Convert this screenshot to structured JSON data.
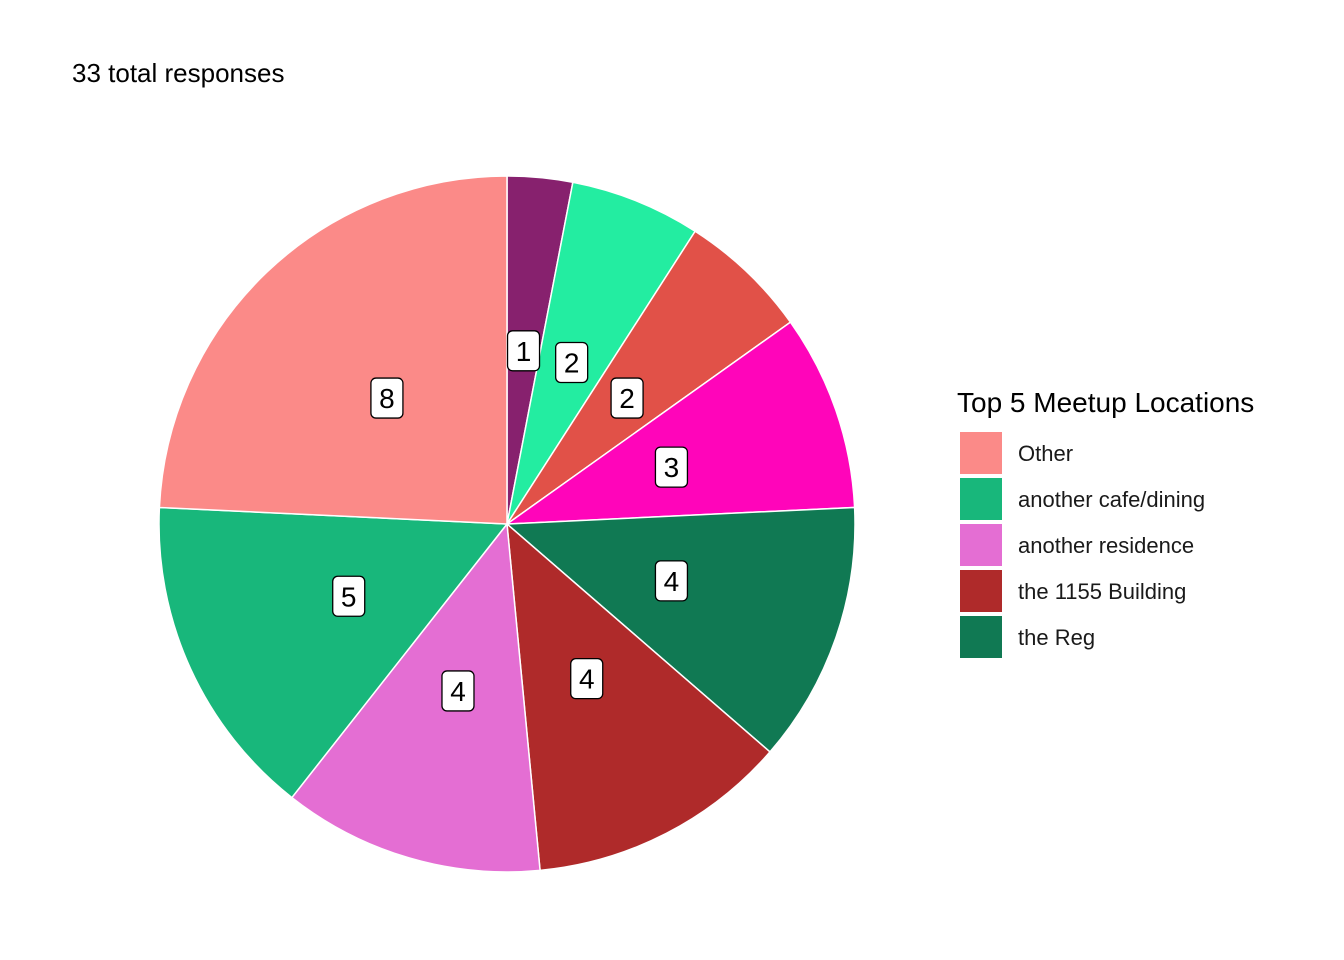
{
  "chart_data": {
    "type": "pie",
    "title": "",
    "subtitle": "33 total responses",
    "total": 33,
    "slices": [
      {
        "value": 1,
        "label": "1",
        "color": "#87216E"
      },
      {
        "value": 2,
        "label": "2",
        "color": "#23EDA1"
      },
      {
        "value": 2,
        "label": "2",
        "color": "#E15148"
      },
      {
        "value": 3,
        "label": "3",
        "color": "#FF05BA"
      },
      {
        "value": 4,
        "label": "4",
        "color": "#107953",
        "category": "the Reg"
      },
      {
        "value": 4,
        "label": "4",
        "color": "#AF2A2A",
        "category": "the 1155 Building"
      },
      {
        "value": 4,
        "label": "4",
        "color": "#E46ED3",
        "category": "another residence"
      },
      {
        "value": 5,
        "label": "5",
        "color": "#18B77B",
        "category": "another cafe/dining"
      },
      {
        "value": 8,
        "label": "8",
        "color": "#FB8A88",
        "category": "Other"
      }
    ],
    "legend": {
      "title": "Top 5 Meetup Locations",
      "position": "right",
      "entries": [
        {
          "label": "Other",
          "color": "#FB8A88"
        },
        {
          "label": "another cafe/dining",
          "color": "#18B77B"
        },
        {
          "label": "another residence",
          "color": "#E46ED3"
        },
        {
          "label": "the 1155 Building",
          "color": "#AF2A2A"
        },
        {
          "label": "the Reg",
          "color": "#107953"
        }
      ]
    }
  }
}
